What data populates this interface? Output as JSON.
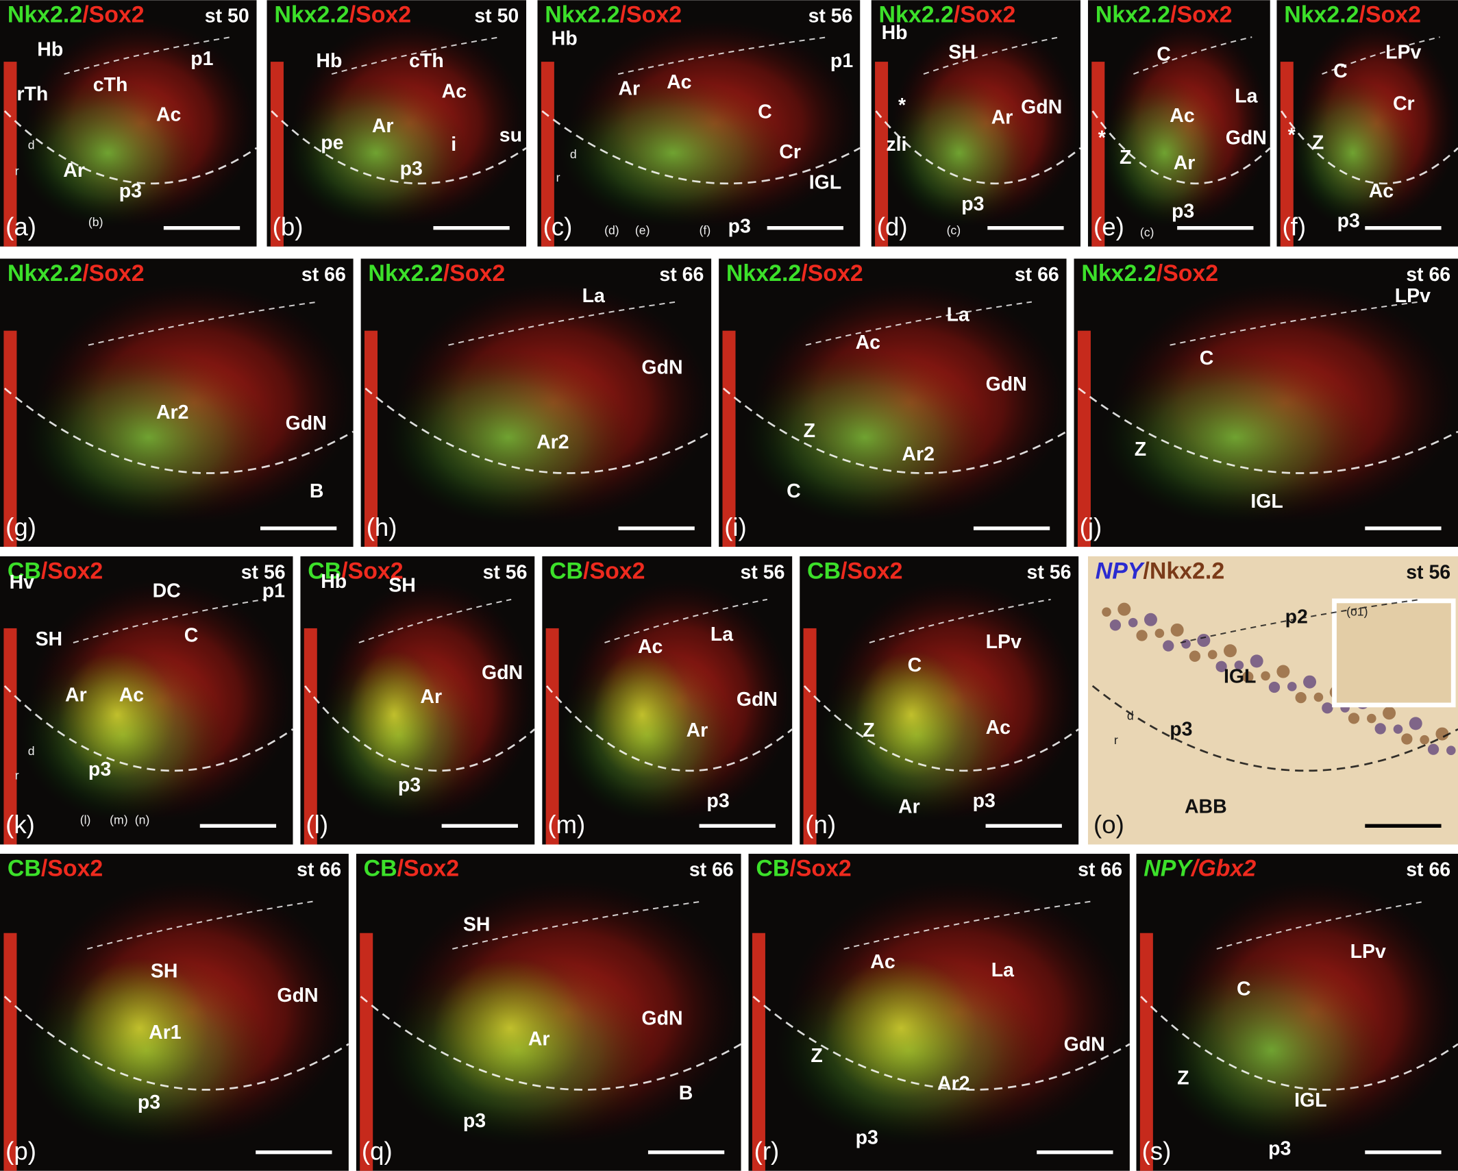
{
  "panels": [
    {
      "letter": "(a)",
      "marker": [
        "Nkx2.2",
        "/Sox2"
      ],
      "stage": "st 50",
      "labels": [
        "Hb",
        "p1",
        "rTh",
        "cTh",
        "Ac",
        "Ar",
        "p3",
        "(b)",
        "d",
        "r"
      ]
    },
    {
      "letter": "(b)",
      "marker": [
        "Nkx2.2",
        "/Sox2"
      ],
      "stage": "st 50",
      "labels": [
        "Hb",
        "cTh",
        "Ac",
        "Ar",
        "pe",
        "i",
        "p3",
        "su"
      ]
    },
    {
      "letter": "(c)",
      "marker": [
        "Nkx2.2",
        "/Sox2"
      ],
      "stage": "st 56",
      "labels": [
        "Hb",
        "Ar",
        "Ac",
        "p1",
        "C",
        "Cr",
        "IGL",
        "p3",
        "(d)",
        "(e)",
        "(f)",
        "d",
        "r"
      ]
    },
    {
      "letter": "(d)",
      "marker": [
        "Nkx2.2",
        "/Sox2"
      ],
      "stage": "",
      "labels": [
        "Hb",
        "SH",
        "Ar",
        "GdN",
        "*",
        "zli",
        "p3",
        "(c)"
      ]
    },
    {
      "letter": "(e)",
      "marker": [
        "Nkx2.2",
        "/Sox2"
      ],
      "stage": "",
      "labels": [
        "C",
        "La",
        "Ac",
        "GdN",
        "Z",
        "Ar",
        "*",
        "p3",
        "(c)"
      ]
    },
    {
      "letter": "(f)",
      "marker": [
        "Nkx2.2",
        "/Sox2"
      ],
      "stage": "",
      "labels": [
        "C",
        "LPv",
        "Cr",
        "Z",
        "*",
        "Ac",
        "p3"
      ]
    },
    {
      "letter": "(g)",
      "marker": [
        "Nkx2.2",
        "/Sox2"
      ],
      "stage": "st 66",
      "labels": [
        "Ar2",
        "GdN",
        "B"
      ]
    },
    {
      "letter": "(h)",
      "marker": [
        "Nkx2.2",
        "/Sox2"
      ],
      "stage": "st 66",
      "labels": [
        "La",
        "GdN",
        "Ar2"
      ]
    },
    {
      "letter": "(i)",
      "marker": [
        "Nkx2.2",
        "/Sox2"
      ],
      "stage": "st 66",
      "labels": [
        "Ac",
        "La",
        "GdN",
        "Z",
        "Ar2",
        "C"
      ]
    },
    {
      "letter": "(j)",
      "marker": [
        "Nkx2.2",
        "/Sox2"
      ],
      "stage": "st 66",
      "labels": [
        "LPv",
        "C",
        "Z",
        "IGL"
      ]
    },
    {
      "letter": "(k)",
      "marker": [
        "CB",
        "/Sox2"
      ],
      "stage": "st 56",
      "labels": [
        "Hv",
        "SH",
        "DC",
        "p1",
        "C",
        "Ar",
        "Ac",
        "p3",
        "(l)",
        "(m)",
        "(n)",
        "d",
        "r"
      ]
    },
    {
      "letter": "(l)",
      "marker": [
        "CB",
        "/Sox2"
      ],
      "stage": "st 56",
      "labels": [
        "Hb",
        "SH",
        "GdN",
        "Ar",
        "p3"
      ]
    },
    {
      "letter": "(m)",
      "marker": [
        "CB",
        "/Sox2"
      ],
      "stage": "st 56",
      "labels": [
        "Ac",
        "La",
        "GdN",
        "Ar",
        "p3"
      ]
    },
    {
      "letter": "(n)",
      "marker": [
        "CB",
        "/Sox2"
      ],
      "stage": "st 56",
      "labels": [
        "C",
        "LPv",
        "Z",
        "Ac",
        "Ar",
        "p3"
      ]
    },
    {
      "letter": "(o)",
      "marker": [
        "NPY",
        "/Nkx2.2"
      ],
      "stage": "st 56",
      "labels": [
        "p2",
        "IGL",
        "p3",
        "ABB",
        "(o1)",
        "d",
        "r"
      ]
    },
    {
      "letter": "(p)",
      "marker": [
        "CB",
        "/Sox2"
      ],
      "stage": "st 66",
      "labels": [
        "SH",
        "GdN",
        "Ar1",
        "p3"
      ]
    },
    {
      "letter": "(q)",
      "marker": [
        "CB",
        "/Sox2"
      ],
      "stage": "st 66",
      "labels": [
        "SH",
        "Ar",
        "GdN",
        "B",
        "p3"
      ]
    },
    {
      "letter": "(r)",
      "marker": [
        "CB",
        "/Sox2"
      ],
      "stage": "st 66",
      "labels": [
        "Ac",
        "La",
        "GdN",
        "Z",
        "Ar2",
        "p3"
      ]
    },
    {
      "letter": "(s)",
      "marker": [
        "NPY",
        "/Gbx2"
      ],
      "stage": "st 66",
      "labels": [
        "LPv",
        "C",
        "Z",
        "IGL",
        "p3"
      ]
    }
  ]
}
